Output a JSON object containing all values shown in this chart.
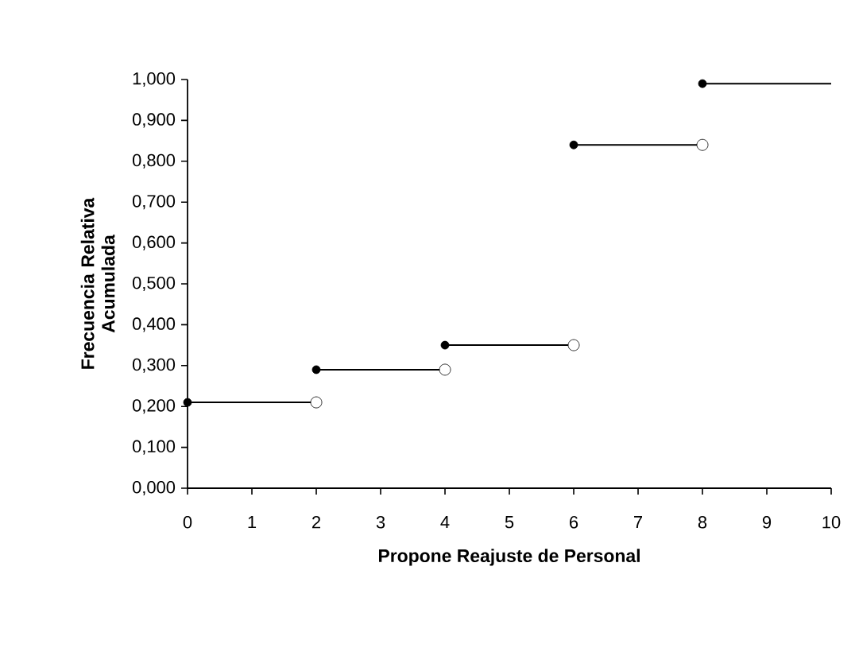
{
  "chart_data": {
    "type": "step",
    "xlabel": "Propone Reajuste de Personal",
    "ylabel": "Frecuencia Relativa Acumulada",
    "series": [
      {
        "color": "#000000",
        "marker": "circle",
        "x": [
          0,
          2,
          4,
          6,
          8,
          10
        ],
        "values": [
          0.21,
          0.29,
          0.35,
          0.84,
          0.99,
          0.99
        ]
      },
      {
        "type": "scatter",
        "color": "#ffffff",
        "marker": "circle",
        "x": [
          2,
          4,
          6,
          8
        ],
        "values": [
          0.21,
          0.29,
          0.35,
          0.84
        ]
      }
    ],
    "xlim": [
      0,
      10
    ],
    "xticks": [
      0,
      1,
      2,
      3,
      4,
      5,
      6,
      7,
      8,
      9,
      10
    ],
    "ylim": [
      0,
      1
    ],
    "yticks": [
      {
        "value": 0,
        "label": "0,000"
      },
      {
        "value": 0.1,
        "label": "0,100"
      },
      {
        "value": 0.2,
        "label": "0,200"
      },
      {
        "value": 0.3,
        "label": "0,300"
      },
      {
        "value": 0.4,
        "label": "0,400"
      },
      {
        "value": 0.5,
        "label": "0,500"
      },
      {
        "value": 0.6,
        "label": "0,600"
      },
      {
        "value": 0.7,
        "label": "0,700"
      },
      {
        "value": 0.8,
        "label": "0,800"
      },
      {
        "value": 0.9,
        "label": "0,900"
      },
      {
        "value": 1,
        "label": "1,000"
      }
    ],
    "grid": false
  }
}
